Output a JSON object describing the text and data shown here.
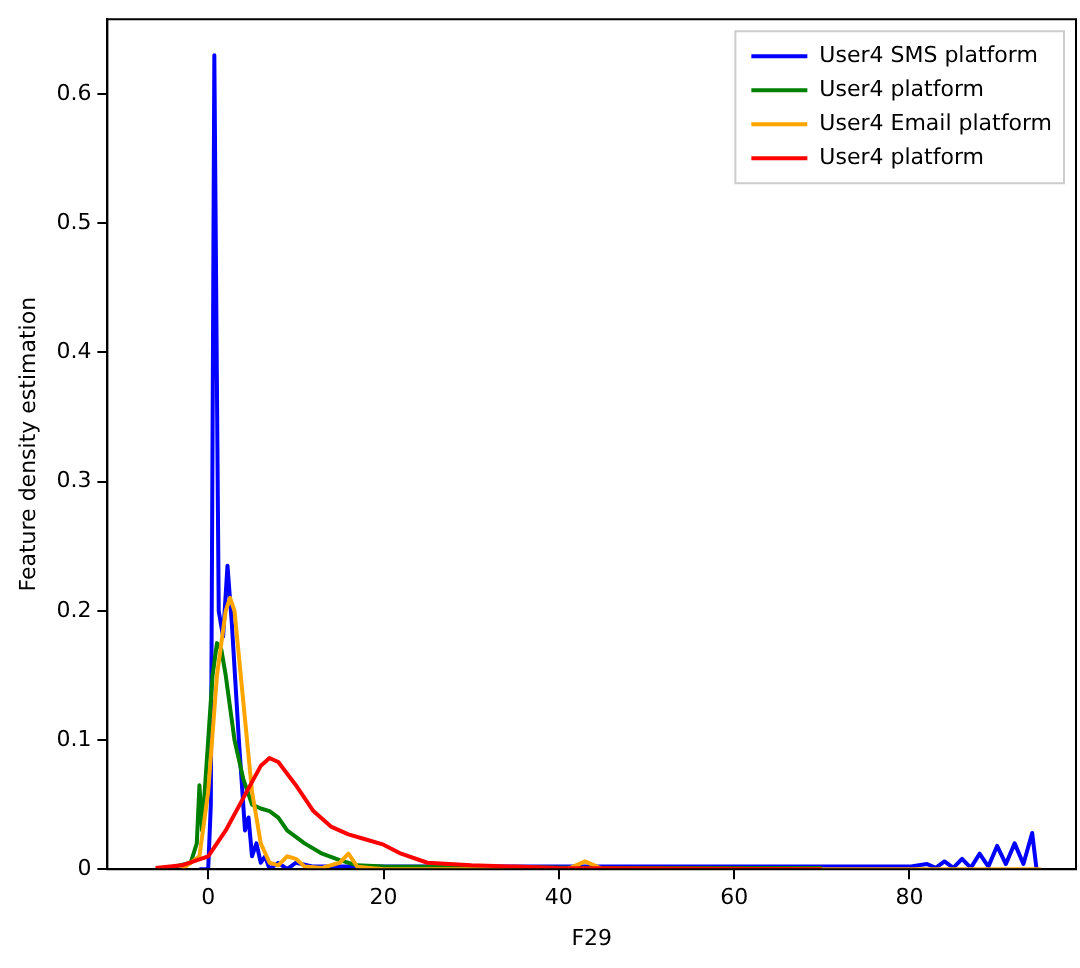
{
  "chart_data": {
    "type": "line",
    "xlabel": "F29",
    "ylabel": "Feature density estimation",
    "xlim": [
      -11.5,
      99
    ],
    "ylim": [
      0,
      0.658
    ],
    "xticks": [
      0,
      20,
      40,
      60,
      80
    ],
    "yticks": [
      0,
      0.1,
      0.2,
      0.3,
      0.4,
      0.5,
      0.6
    ],
    "grid": false,
    "legend": "top right",
    "marker": "none",
    "line_style": "solid",
    "series": [
      {
        "name": "User4 SMS platform",
        "color": "#0000ff",
        "x": [
          -1,
          0,
          0.3,
          0.7,
          1.2,
          1.7,
          2.2,
          2.7,
          3.5,
          4.2,
          4.6,
          5,
          5.5,
          6,
          6.5,
          7,
          8,
          9,
          10,
          12,
          20,
          40,
          60,
          80,
          82,
          83,
          84,
          85,
          86,
          87,
          88,
          89,
          90,
          91,
          92,
          93,
          94,
          94.5
        ],
        "values": [
          0,
          0,
          0.05,
          0.63,
          0.2,
          0.18,
          0.235,
          0.19,
          0.1,
          0.03,
          0.04,
          0.01,
          0.02,
          0.005,
          0.01,
          0,
          0.005,
          0,
          0.005,
          0.002,
          0.002,
          0.002,
          0.002,
          0.002,
          0.004,
          0.001,
          0.006,
          0.001,
          0.008,
          0.001,
          0.012,
          0.002,
          0.018,
          0.004,
          0.02,
          0.004,
          0.028,
          0
        ]
      },
      {
        "name": "User4 platform",
        "color": "#008000",
        "x": [
          -5,
          -2,
          -1.3,
          -1,
          -0.7,
          -0.3,
          0,
          0.5,
          1,
          1.5,
          2,
          3,
          4,
          5,
          6,
          7,
          8,
          9,
          11,
          13,
          15,
          17,
          20,
          45,
          70
        ],
        "values": [
          0,
          0.005,
          0.02,
          0.065,
          0.03,
          0.07,
          0.1,
          0.15,
          0.175,
          0.17,
          0.15,
          0.1,
          0.07,
          0.05,
          0.047,
          0.045,
          0.04,
          0.03,
          0.02,
          0.012,
          0.007,
          0.003,
          0.002,
          0.001,
          0.001
        ]
      },
      {
        "name": "User4 Email platform",
        "color": "#ffa500",
        "x": [
          -3,
          -1,
          0,
          1,
          2,
          2.5,
          3,
          4,
          5,
          6,
          7,
          8,
          9,
          10,
          11,
          13,
          15,
          16,
          17,
          20,
          41,
          43,
          45,
          95
        ],
        "values": [
          0,
          0.01,
          0.06,
          0.15,
          0.2,
          0.21,
          0.2,
          0.13,
          0.06,
          0.02,
          0.005,
          0.003,
          0.01,
          0.008,
          0.002,
          0.001,
          0.005,
          0.012,
          0.002,
          0,
          0,
          0.006,
          0,
          0
        ]
      },
      {
        "name": "User4 platform",
        "color": "#ff0000",
        "x": [
          -6,
          -3,
          0,
          2,
          4,
          6,
          7,
          8,
          10,
          12,
          14,
          16,
          18,
          20,
          22,
          25,
          30,
          35,
          40,
          70
        ],
        "values": [
          0.001,
          0.003,
          0.01,
          0.03,
          0.055,
          0.08,
          0.086,
          0.083,
          0.065,
          0.045,
          0.033,
          0.027,
          0.023,
          0.019,
          0.012,
          0.005,
          0.003,
          0.002,
          0.001,
          0
        ]
      }
    ]
  }
}
